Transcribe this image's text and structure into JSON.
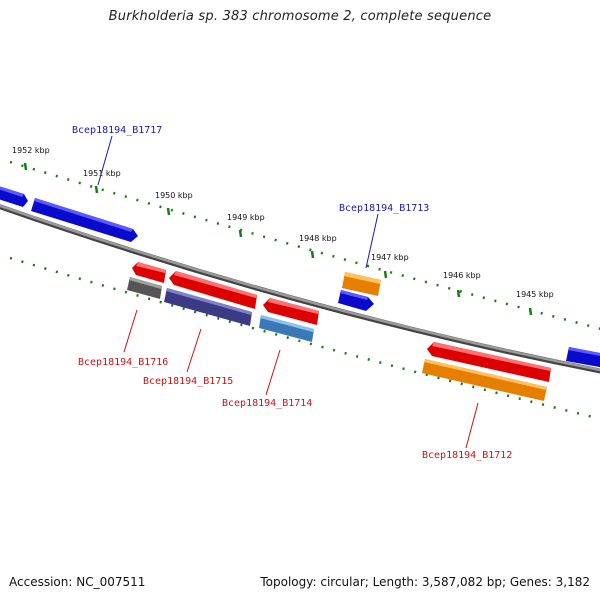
{
  "title": "Burkholderia sp. 383 chromosome 2, complete sequence",
  "footer": {
    "accession": "Accession: NC_007511",
    "summary": "Topology: circular; Length: 3,587,082 bp; Genes: 3,182"
  },
  "scale_labels": [
    "1952 kbp",
    "1951 kbp",
    "1950 kbp",
    "1949 kbp",
    "1948 kbp",
    "1947 kbp",
    "1946 kbp",
    "1945 kbp"
  ],
  "gene_labels": {
    "b1717": "Bcep18194_B1717",
    "b1713": "Bcep18194_B1713",
    "b1716": "Bcep18194_B1716",
    "b1715": "Bcep18194_B1715",
    "b1714": "Bcep18194_B1714",
    "b1712": "Bcep18194_B1712"
  },
  "colors": {
    "backbone": "#808080",
    "tick": "#1a7a1a",
    "blue_gene": "#1010ee",
    "red_gene": "#ee1010",
    "orange_gene": "#ff9410",
    "grey_gene": "#707070",
    "purple_gene": "#4a4a9a",
    "steel_gene": "#4a8ac8",
    "top_label": "#1a1aaa",
    "bottom_label": "#cc1111"
  }
}
